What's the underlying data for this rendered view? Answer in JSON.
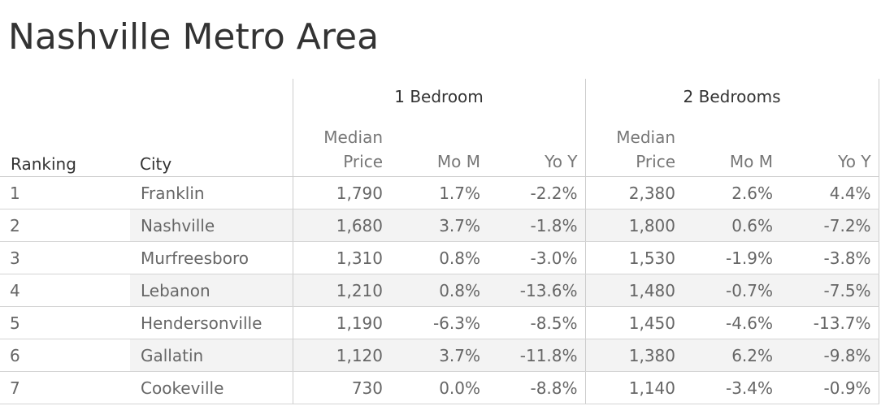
{
  "title": "Nashville Metro Area",
  "colors": {
    "header_text": "#333333",
    "body_text": "#666666",
    "band": "#f3f3f3",
    "rule": "#cccccc"
  },
  "chart_data": {
    "type": "table",
    "title": "Nashville Metro Area",
    "row_headers": [
      "Ranking",
      "City"
    ],
    "column_groups": [
      {
        "label": "1 Bedroom",
        "columns": [
          "Median Price",
          "Mo M",
          "Yo Y"
        ]
      },
      {
        "label": "2 Bedrooms",
        "columns": [
          "Median Price",
          "Mo M",
          "Yo Y"
        ]
      }
    ],
    "header_labels": {
      "median_top": "Median",
      "median_bottom": "Price",
      "mom": "Mo M",
      "yoy": "Yo Y"
    },
    "rows": [
      {
        "rank": "1",
        "city": "Franklin",
        "values": [
          "1,790",
          "1.7%",
          "-2.2%",
          "2,380",
          "2.6%",
          "4.4%"
        ]
      },
      {
        "rank": "2",
        "city": "Nashville",
        "values": [
          "1,680",
          "3.7%",
          "-1.8%",
          "1,800",
          "0.6%",
          "-7.2%"
        ]
      },
      {
        "rank": "3",
        "city": "Murfreesboro",
        "values": [
          "1,310",
          "0.8%",
          "-3.0%",
          "1,530",
          "-1.9%",
          "-3.8%"
        ]
      },
      {
        "rank": "4",
        "city": "Lebanon",
        "values": [
          "1,210",
          "0.8%",
          "-13.6%",
          "1,480",
          "-0.7%",
          "-7.5%"
        ]
      },
      {
        "rank": "5",
        "city": "Hendersonville",
        "values": [
          "1,190",
          "-6.3%",
          "-8.5%",
          "1,450",
          "-4.6%",
          "-13.7%"
        ]
      },
      {
        "rank": "6",
        "city": "Gallatin",
        "values": [
          "1,120",
          "3.7%",
          "-11.8%",
          "1,380",
          "6.2%",
          "-9.8%"
        ]
      },
      {
        "rank": "7",
        "city": "Cookeville",
        "values": [
          "730",
          "0.0%",
          "-8.8%",
          "1,140",
          "-3.4%",
          "-0.9%"
        ]
      }
    ]
  }
}
